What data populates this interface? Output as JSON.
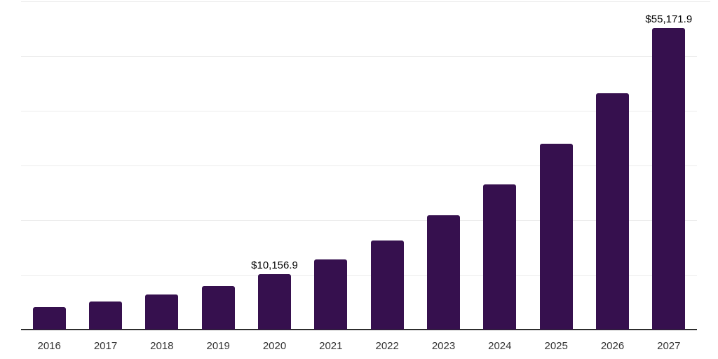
{
  "chart_data": {
    "type": "bar",
    "title": "",
    "xlabel": "",
    "ylabel": "",
    "categories": [
      "2016",
      "2017",
      "2018",
      "2019",
      "2020",
      "2021",
      "2022",
      "2023",
      "2024",
      "2025",
      "2026",
      "2027"
    ],
    "values": [
      4050,
      5100,
      6400,
      8000,
      10156.9,
      12850,
      16350,
      20900,
      26600,
      34000,
      43300,
      55171.9
    ],
    "data_labels": [
      "",
      "",
      "",
      "",
      "$10,156.9",
      "",
      "",
      "",
      "",
      "",
      "",
      "$55,171.9"
    ],
    "ylim": [
      0,
      60000
    ],
    "ytick_step": 10000,
    "y_tick_labels_visible": false,
    "grid": "horizontal",
    "legend": "none",
    "colors": {
      "bar": "#36104E",
      "axis_line": "#2D2D2D",
      "gridline": "#ECECEC",
      "data_label": "#060606",
      "tick_label": "#333333",
      "background": "#FFFFFF"
    }
  }
}
